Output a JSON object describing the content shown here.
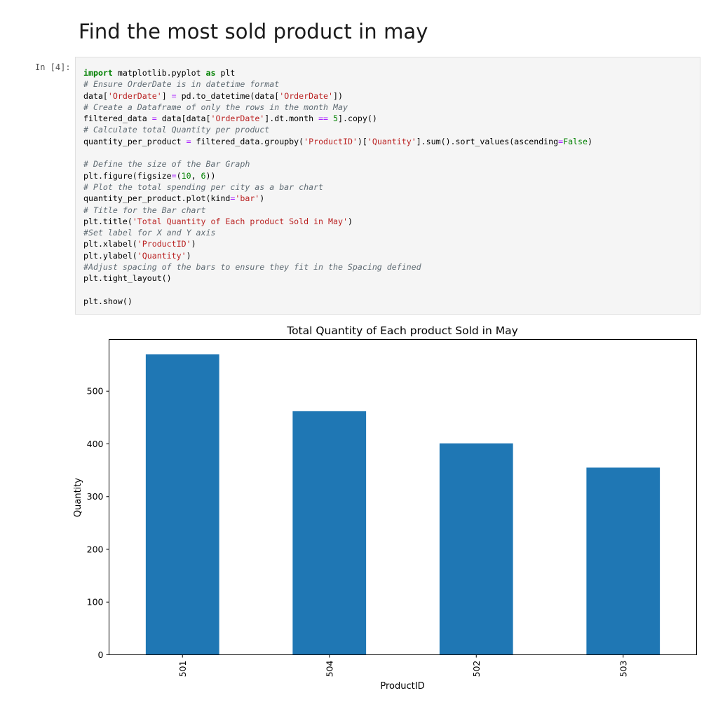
{
  "notebook": {
    "heading": "Find the most sold product in may",
    "prompt": "In [4]:",
    "code_lines": [
      [
        [
          "k",
          "import"
        ],
        [
          "t",
          " matplotlib.pyplot "
        ],
        [
          "k",
          "as"
        ],
        [
          "t",
          " plt"
        ]
      ],
      [
        [
          "c",
          "# Ensure OrderDate is in datetime format"
        ]
      ],
      [
        [
          "t",
          "data["
        ],
        [
          "s",
          "'OrderDate'"
        ],
        [
          "t",
          "] "
        ],
        [
          "o",
          "="
        ],
        [
          "t",
          " pd.to_datetime(data["
        ],
        [
          "s",
          "'OrderDate'"
        ],
        [
          "t",
          "])"
        ]
      ],
      [
        [
          "c",
          "# Create a Dataframe of only the rows in the month May"
        ]
      ],
      [
        [
          "t",
          "filtered_data "
        ],
        [
          "o",
          "="
        ],
        [
          "t",
          " data[data["
        ],
        [
          "s",
          "'OrderDate'"
        ],
        [
          "t",
          "].dt.month "
        ],
        [
          "o",
          "=="
        ],
        [
          "t",
          " "
        ],
        [
          "n",
          "5"
        ],
        [
          "t",
          "].copy()"
        ]
      ],
      [
        [
          "c",
          "# Calculate total Quantity per product"
        ]
      ],
      [
        [
          "t",
          "quantity_per_product "
        ],
        [
          "o",
          "="
        ],
        [
          "t",
          " filtered_data.groupby("
        ],
        [
          "s",
          "'ProductID'"
        ],
        [
          "t",
          ")["
        ],
        [
          "s",
          "'Quantity'"
        ],
        [
          "t",
          "].sum().sort_values(ascending"
        ],
        [
          "o",
          "="
        ],
        [
          "n",
          "False"
        ],
        [
          "t",
          ")"
        ]
      ],
      [],
      [
        [
          "c",
          "# Define the size of the Bar Graph"
        ]
      ],
      [
        [
          "t",
          "plt.figure(figsize"
        ],
        [
          "o",
          "="
        ],
        [
          "t",
          "("
        ],
        [
          "n",
          "10"
        ],
        [
          "t",
          ", "
        ],
        [
          "n",
          "6"
        ],
        [
          "t",
          "))"
        ]
      ],
      [
        [
          "c",
          "# Plot the total spending per city as a bar chart"
        ]
      ],
      [
        [
          "t",
          "quantity_per_product.plot(kind"
        ],
        [
          "o",
          "="
        ],
        [
          "s",
          "'bar'"
        ],
        [
          "t",
          ")"
        ]
      ],
      [
        [
          "c",
          "# Title for the Bar chart"
        ]
      ],
      [
        [
          "t",
          "plt.title("
        ],
        [
          "s",
          "'Total Quantity of Each product Sold in May'"
        ],
        [
          "t",
          ")"
        ]
      ],
      [
        [
          "c",
          "#Set label for X and Y axis"
        ]
      ],
      [
        [
          "t",
          "plt.xlabel("
        ],
        [
          "s",
          "'ProductID'"
        ],
        [
          "t",
          ")"
        ]
      ],
      [
        [
          "t",
          "plt.ylabel("
        ],
        [
          "s",
          "'Quantity'"
        ],
        [
          "t",
          ")"
        ]
      ],
      [
        [
          "c",
          "#Adjust spacing of the bars to ensure they fit in the Spacing defined"
        ]
      ],
      [
        [
          "t",
          "plt.tight_layout()"
        ]
      ],
      [],
      [
        [
          "t",
          "plt.show()"
        ]
      ]
    ]
  },
  "colors": {
    "bar": "#1f77b4"
  },
  "chart_data": {
    "type": "bar",
    "title": "Total Quantity of Each product Sold in May",
    "xlabel": "ProductID",
    "ylabel": "Quantity",
    "categories": [
      "501",
      "504",
      "502",
      "503"
    ],
    "values": [
      570,
      462,
      401,
      355
    ],
    "yticks": [
      0,
      100,
      200,
      300,
      400,
      500
    ],
    "ylim": [
      0,
      598
    ]
  }
}
